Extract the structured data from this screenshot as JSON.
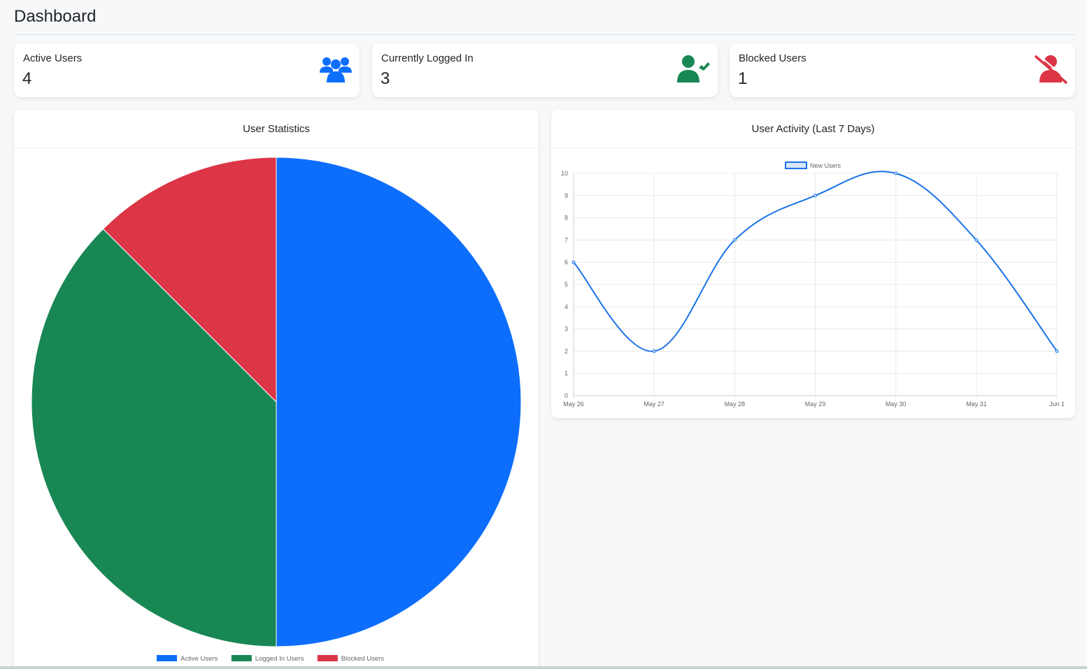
{
  "page": {
    "title": "Dashboard"
  },
  "stats": [
    {
      "label": "Active Users",
      "value": "4",
      "icon": "users-group-icon",
      "color": "#0d6efd"
    },
    {
      "label": "Currently Logged In",
      "value": "3",
      "icon": "user-check-icon",
      "color": "#198754"
    },
    {
      "label": "Blocked Users",
      "value": "1",
      "icon": "user-slash-icon",
      "color": "#dc3545"
    }
  ],
  "pie_panel": {
    "title": "User Statistics"
  },
  "line_panel": {
    "title": "User Activity (Last 7 Days)"
  },
  "chart_data": [
    {
      "type": "pie",
      "categories": [
        "Active Users",
        "Logged In Users",
        "Blocked Users"
      ],
      "values": [
        4,
        3,
        1
      ],
      "colors": [
        "#0d6efd",
        "#198754",
        "#dc3545"
      ],
      "legend": "bottom"
    },
    {
      "type": "line",
      "x": [
        "May 26",
        "May 27",
        "May 28",
        "May 29",
        "May 30",
        "May 31",
        "Jun 1"
      ],
      "series": [
        {
          "name": "New Users",
          "values": [
            6,
            2,
            7,
            9,
            10,
            7,
            2
          ],
          "color": "#1a73e8"
        }
      ],
      "ylim": [
        0,
        10
      ],
      "yticks": [
        "0",
        "1",
        "2",
        "3",
        "4",
        "5",
        "6",
        "7",
        "8",
        "9",
        "10"
      ],
      "grid": true,
      "legend": "top"
    }
  ]
}
